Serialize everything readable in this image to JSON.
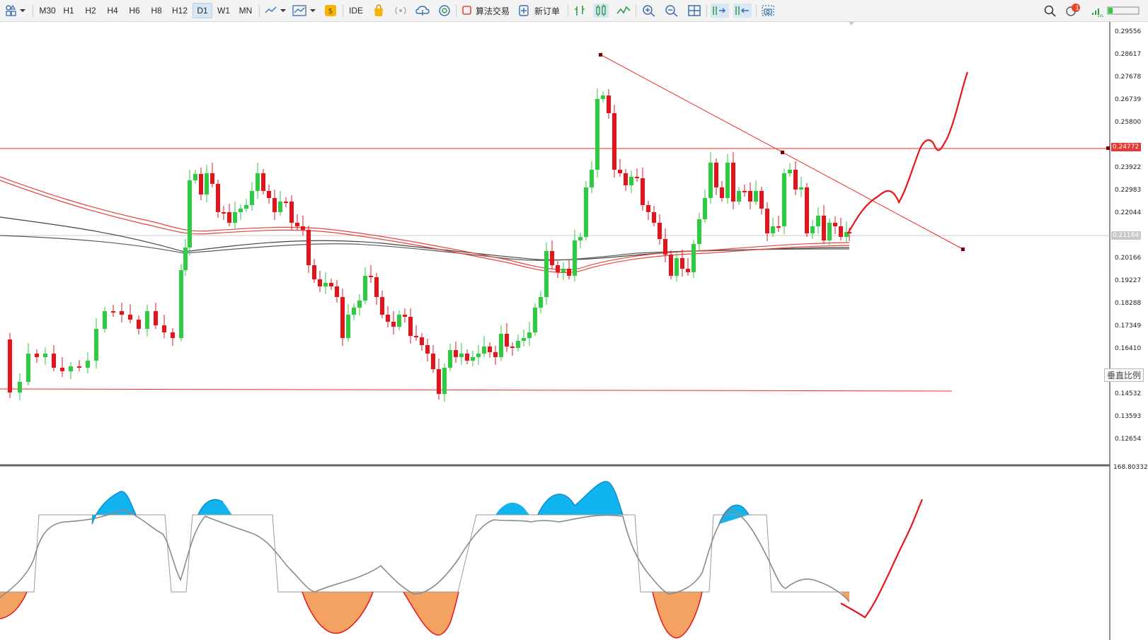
{
  "toolbar": {
    "timeframes": [
      "M30",
      "H1",
      "H2",
      "H4",
      "H6",
      "H8",
      "H12",
      "D1",
      "W1",
      "MN"
    ],
    "active_timeframe": "D1",
    "ide_label": "IDE",
    "algo_label": "算法交易",
    "new_order_label": "新订单",
    "notification_count": "1"
  },
  "price_axis": {
    "labels": [
      "0.29556",
      "0.28617",
      "0.27678",
      "0.26739",
      "0.25800",
      "0.23922",
      "0.22983",
      "0.22044",
      "0.20166",
      "0.19227",
      "0.18288",
      "0.17349",
      "0.16410",
      "0.14532",
      "0.13593",
      "0.12654"
    ],
    "resistance_price": "0.24772",
    "current_price": "0.21164",
    "vertical_scale_label": "垂直比例"
  },
  "indicator": {
    "max_label": "168.803326"
  },
  "colors": {
    "bull": "#2ecc40",
    "bear": "#e8141b",
    "trend": "#f0292a",
    "ma_red": "#e8433b",
    "ma_dark": "#444444",
    "osc_blue": "#10b4ef",
    "osc_orange": "#f3a261"
  }
}
